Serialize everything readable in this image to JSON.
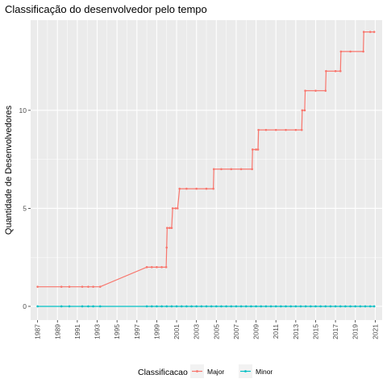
{
  "chart_data": {
    "type": "line",
    "title": "Classificação do desenvolvedor pelo tempo",
    "xlabel": "",
    "ylabel": "Quantidade de Desenvolvedores",
    "xlim": [
      1986.3,
      2021.7
    ],
    "ylim": [
      -0.7,
      14.6
    ],
    "x_ticks": [
      1987,
      1989,
      1991,
      1993,
      1995,
      1997,
      1999,
      2001,
      2003,
      2005,
      2007,
      2009,
      2011,
      2013,
      2015,
      2017,
      2019,
      2021
    ],
    "y_ticks": [
      0,
      5,
      10
    ],
    "grid": true,
    "legend": {
      "title": "Classificacao",
      "position": "bottom"
    },
    "series": [
      {
        "name": "Major",
        "color": "#F8766D",
        "points": [
          [
            1987,
            1
          ],
          [
            1989.4,
            1
          ],
          [
            1990.2,
            1
          ],
          [
            1991.5,
            1
          ],
          [
            1992.1,
            1
          ],
          [
            1992.6,
            1
          ],
          [
            1993.3,
            1
          ],
          [
            1998,
            2
          ],
          [
            1998.5,
            2
          ],
          [
            1999,
            2
          ],
          [
            1999.5,
            2
          ],
          [
            1999.95,
            2
          ],
          [
            2000.0,
            3
          ],
          [
            2000.05,
            4
          ],
          [
            2000.3,
            4
          ],
          [
            2000.5,
            4
          ],
          [
            2000.6,
            5
          ],
          [
            2000.9,
            5
          ],
          [
            2001.1,
            5
          ],
          [
            2001.3,
            6
          ],
          [
            2002,
            6
          ],
          [
            2003,
            6
          ],
          [
            2004,
            6
          ],
          [
            2004.7,
            6
          ],
          [
            2004.75,
            7
          ],
          [
            2005.5,
            7
          ],
          [
            2006.5,
            7
          ],
          [
            2007.5,
            7
          ],
          [
            2008.6,
            7
          ],
          [
            2008.65,
            8
          ],
          [
            2009.0,
            8
          ],
          [
            2009.2,
            8
          ],
          [
            2009.25,
            9
          ],
          [
            2010,
            9
          ],
          [
            2011,
            9
          ],
          [
            2012,
            9
          ],
          [
            2013,
            9
          ],
          [
            2013.6,
            9
          ],
          [
            2013.65,
            10
          ],
          [
            2013.9,
            10
          ],
          [
            2013.95,
            11
          ],
          [
            2015,
            11
          ],
          [
            2016.0,
            11
          ],
          [
            2016.05,
            12
          ],
          [
            2017,
            12
          ],
          [
            2017.5,
            12
          ],
          [
            2017.55,
            13
          ],
          [
            2018.5,
            13
          ],
          [
            2019.8,
            13
          ],
          [
            2019.85,
            14
          ],
          [
            2020.5,
            14
          ],
          [
            2020.9,
            14
          ]
        ]
      },
      {
        "name": "Minor",
        "color": "#00BFC4",
        "points": [
          [
            1987,
            0
          ],
          [
            1989.4,
            0
          ],
          [
            1990.2,
            0
          ],
          [
            1991.5,
            0
          ],
          [
            1992.1,
            0
          ],
          [
            1992.6,
            0
          ],
          [
            1993.3,
            0
          ],
          [
            1998,
            0
          ],
          [
            1998.5,
            0
          ],
          [
            1999,
            0
          ],
          [
            1999.5,
            0
          ],
          [
            2000,
            0
          ],
          [
            2000.5,
            0
          ],
          [
            2001,
            0
          ],
          [
            2001.5,
            0
          ],
          [
            2002,
            0
          ],
          [
            2002.5,
            0
          ],
          [
            2003,
            0
          ],
          [
            2003.5,
            0
          ],
          [
            2004,
            0
          ],
          [
            2004.5,
            0
          ],
          [
            2005,
            0
          ],
          [
            2005.5,
            0
          ],
          [
            2006,
            0
          ],
          [
            2006.5,
            0
          ],
          [
            2007,
            0
          ],
          [
            2007.5,
            0
          ],
          [
            2008,
            0
          ],
          [
            2008.5,
            0
          ],
          [
            2009,
            0
          ],
          [
            2009.5,
            0
          ],
          [
            2010,
            0
          ],
          [
            2010.5,
            0
          ],
          [
            2011,
            0
          ],
          [
            2011.5,
            0
          ],
          [
            2012,
            0
          ],
          [
            2012.5,
            0
          ],
          [
            2013,
            0
          ],
          [
            2013.5,
            0
          ],
          [
            2014,
            0
          ],
          [
            2014.5,
            0
          ],
          [
            2015,
            0
          ],
          [
            2015.5,
            0
          ],
          [
            2016,
            0
          ],
          [
            2016.5,
            0
          ],
          [
            2017,
            0
          ],
          [
            2017.5,
            0
          ],
          [
            2018,
            0
          ],
          [
            2018.5,
            0
          ],
          [
            2019,
            0
          ],
          [
            2019.5,
            0
          ],
          [
            2020,
            0
          ],
          [
            2020.5,
            0
          ],
          [
            2020.9,
            0
          ]
        ]
      }
    ]
  }
}
